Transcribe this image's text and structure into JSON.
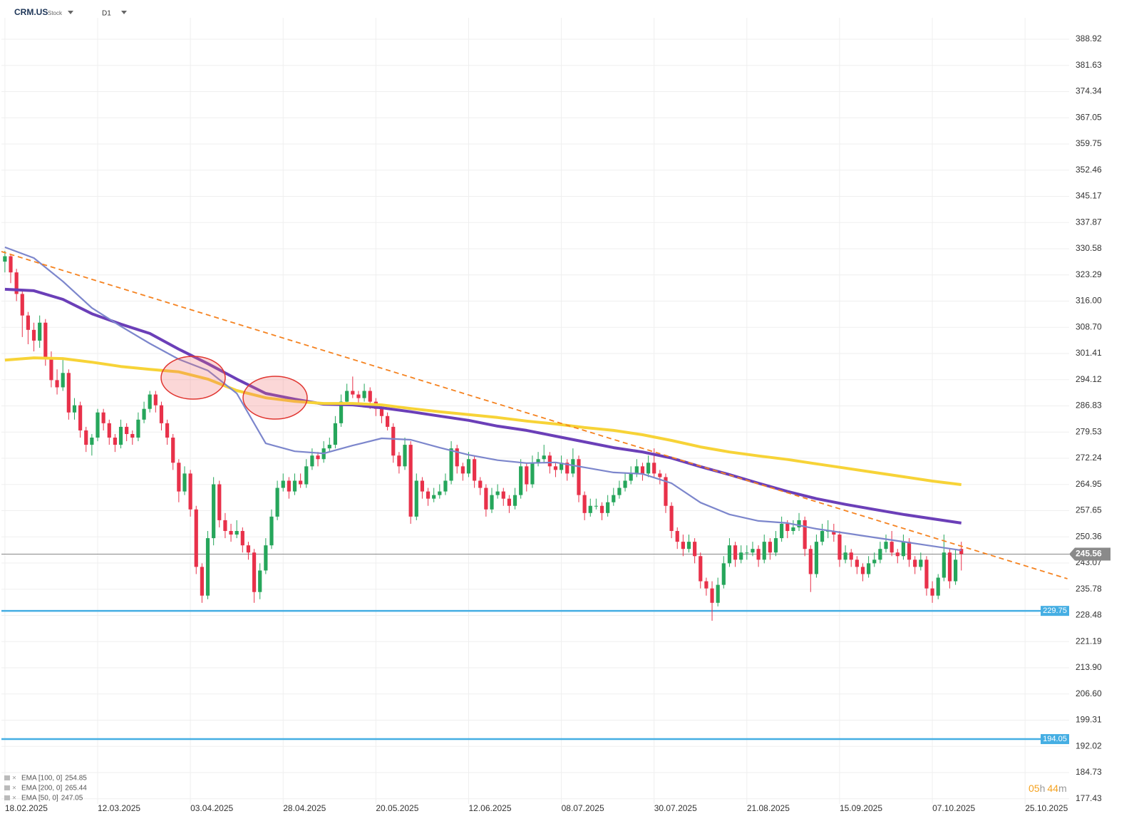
{
  "header": {
    "symbol": "CRM.US",
    "asset_class": "Stock",
    "timeframe": "D1"
  },
  "countdown": [
    "05",
    "h",
    "44",
    "m"
  ],
  "chart_data": {
    "type": "candlestick",
    "up_color": "#26a65b",
    "down_color": "#e8314a",
    "xlim": [
      -0.6,
      183.6
    ],
    "xticks": [
      {
        "value": 0,
        "label": "18.02.2025"
      },
      {
        "value": 16,
        "label": "12.03.2025"
      },
      {
        "value": 32,
        "label": "03.04.2025"
      },
      {
        "value": 48,
        "label": "28.04.2025"
      },
      {
        "value": 64,
        "label": "20.05.2025"
      },
      {
        "value": 80,
        "label": "12.06.2025"
      },
      {
        "value": 96,
        "label": "08.07.2025"
      },
      {
        "value": 112,
        "label": "30.07.2025"
      },
      {
        "value": 128,
        "label": "21.08.2025"
      },
      {
        "value": 144,
        "label": "15.09.2025"
      },
      {
        "value": 160,
        "label": "07.10.2025"
      },
      {
        "value": 176,
        "label": "25.10.2025"
      }
    ],
    "ylim": [
      176.0,
      392.9
    ],
    "yticks": [
      388.92,
      381.63,
      374.34,
      367.05,
      359.75,
      352.46,
      345.17,
      337.87,
      330.58,
      323.29,
      {
        "value": 316,
        "label": "316.00"
      },
      {
        "value": 308.7,
        "label": "308.70"
      },
      301.41,
      294.12,
      286.83,
      279.53,
      272.24,
      264.95,
      257.65,
      250.36,
      243.07,
      235.78,
      228.48,
      221.19,
      {
        "value": 213.9,
        "label": "213.90"
      },
      {
        "value": 206.6,
        "label": "206.60"
      },
      199.31,
      192.02,
      184.73,
      177.43
    ],
    "grid": true,
    "candles": [
      [
        327,
        330,
        324,
        328.5
      ],
      [
        328.5,
        329,
        321,
        324
      ],
      [
        324,
        325,
        316,
        318
      ],
      [
        318,
        319,
        306,
        312
      ],
      [
        312,
        313,
        304,
        308
      ],
      [
        308,
        310,
        302,
        305
      ],
      [
        305,
        312,
        303,
        310
      ],
      [
        310,
        311,
        298,
        300
      ],
      [
        300,
        302,
        292,
        294
      ],
      [
        294,
        297,
        290,
        292
      ],
      [
        292,
        300,
        291,
        296
      ],
      [
        296,
        297,
        283,
        285
      ],
      [
        285,
        289,
        283,
        287
      ],
      [
        287,
        288,
        278,
        280
      ],
      [
        280,
        281,
        274,
        276
      ],
      [
        276,
        279,
        273,
        278
      ],
      [
        278,
        286,
        277,
        285
      ],
      [
        285,
        286,
        280,
        282
      ],
      [
        282,
        283,
        276,
        278
      ],
      [
        278,
        279,
        274,
        276
      ],
      [
        276,
        283,
        275,
        281
      ],
      [
        281,
        282,
        277,
        279
      ],
      [
        279,
        280,
        276,
        278
      ],
      [
        278,
        285,
        277,
        283
      ],
      [
        283,
        288,
        282,
        286
      ],
      [
        286,
        291,
        285,
        290
      ],
      [
        290,
        291,
        285,
        287
      ],
      [
        287,
        288,
        280,
        282
      ],
      [
        282,
        283,
        276,
        278
      ],
      [
        278,
        279,
        269,
        271
      ],
      [
        271,
        272,
        260,
        263
      ],
      [
        263,
        270,
        262,
        268
      ],
      [
        268,
        269,
        256,
        258
      ],
      [
        258,
        259,
        240,
        242
      ],
      [
        242,
        243,
        232,
        234
      ],
      [
        234,
        252,
        233,
        250
      ],
      [
        250,
        267,
        248,
        265
      ],
      [
        265,
        266,
        253,
        255
      ],
      [
        255,
        257,
        250,
        252
      ],
      [
        252,
        254,
        249,
        251
      ],
      [
        251,
        255,
        250,
        252
      ],
      [
        252,
        253,
        246,
        248
      ],
      [
        248,
        249,
        244,
        246
      ],
      [
        246,
        247,
        232,
        235
      ],
      [
        235,
        243,
        233,
        241
      ],
      [
        241,
        250,
        240,
        248
      ],
      [
        248,
        258,
        247,
        256
      ],
      [
        256,
        266,
        255,
        264
      ],
      [
        264,
        268,
        263,
        266
      ],
      [
        266,
        267,
        261,
        263
      ],
      [
        263,
        268,
        262,
        266
      ],
      [
        266,
        268,
        264,
        265
      ],
      [
        265,
        272,
        264,
        270
      ],
      [
        270,
        275,
        269,
        273
      ],
      [
        273,
        274,
        270,
        272
      ],
      [
        272,
        277,
        271,
        275
      ],
      [
        275,
        278,
        274,
        276
      ],
      [
        276,
        284,
        275,
        282
      ],
      [
        282,
        290,
        281,
        288
      ],
      [
        288,
        293,
        287,
        291
      ],
      [
        291,
        295,
        289,
        290
      ],
      [
        290,
        291,
        287,
        289
      ],
      [
        289,
        293,
        288,
        291
      ],
      [
        291,
        292,
        286,
        288
      ],
      [
        288,
        289,
        284,
        286
      ],
      [
        286,
        287,
        282,
        284
      ],
      [
        284,
        285,
        280,
        281
      ],
      [
        281,
        282,
        271,
        273
      ],
      [
        273,
        274,
        268,
        270
      ],
      [
        270,
        278,
        269,
        276
      ],
      [
        276,
        277,
        254,
        256
      ],
      [
        256,
        268,
        255,
        266
      ],
      [
        266,
        267,
        261,
        263
      ],
      [
        263,
        264,
        259,
        261
      ],
      [
        261,
        264,
        260,
        262
      ],
      [
        262,
        265,
        261,
        263
      ],
      [
        263,
        268,
        262,
        266
      ],
      [
        266,
        277,
        265,
        275
      ],
      [
        275,
        276,
        268,
        270
      ],
      [
        270,
        271,
        266,
        268
      ],
      [
        268,
        274,
        267,
        272
      ],
      [
        272,
        273,
        264,
        266
      ],
      [
        266,
        267,
        262,
        264
      ],
      [
        264,
        265,
        256,
        258
      ],
      [
        258,
        264,
        257,
        262
      ],
      [
        262,
        265,
        261,
        263
      ],
      [
        263,
        264,
        259,
        261
      ],
      [
        261,
        262,
        257,
        259
      ],
      [
        259,
        264,
        258,
        262
      ],
      [
        262,
        272,
        261,
        270
      ],
      [
        270,
        271,
        263,
        265
      ],
      [
        265,
        273,
        264,
        271
      ],
      [
        271,
        274,
        270,
        272
      ],
      [
        272,
        276,
        271,
        273
      ],
      [
        273,
        274,
        268,
        270
      ],
      [
        270,
        271,
        267,
        269
      ],
      [
        269,
        273,
        268,
        271
      ],
      [
        271,
        272,
        266,
        268
      ],
      [
        268,
        275,
        267,
        272
      ],
      [
        272,
        273,
        260,
        262
      ],
      [
        262,
        263,
        255,
        257
      ],
      [
        257,
        261,
        256,
        259
      ],
      [
        259,
        261,
        258,
        259
      ],
      [
        259,
        260,
        255,
        257
      ],
      [
        257,
        262,
        256,
        260
      ],
      [
        260,
        264,
        259,
        262
      ],
      [
        262,
        266,
        261,
        264
      ],
      [
        264,
        268,
        263,
        266
      ],
      [
        266,
        270,
        265,
        268
      ],
      [
        268,
        272,
        267,
        270
      ],
      [
        270,
        271,
        266,
        268
      ],
      [
        268,
        273,
        267,
        271
      ],
      [
        271,
        275,
        267,
        268
      ],
      [
        268,
        269,
        265,
        267
      ],
      [
        267,
        268,
        257,
        259
      ],
      [
        259,
        260,
        250,
        252
      ],
      [
        252,
        253,
        247,
        249
      ],
      [
        249,
        251,
        245,
        247
      ],
      [
        247,
        251,
        246,
        249
      ],
      [
        249,
        250,
        243,
        245
      ],
      [
        245,
        246,
        236,
        238
      ],
      [
        238,
        239,
        234,
        236
      ],
      [
        236,
        238,
        227,
        232
      ],
      [
        232,
        239,
        231,
        237
      ],
      [
        237,
        245,
        236,
        243
      ],
      [
        243,
        250,
        242,
        248
      ],
      [
        248,
        249,
        242,
        244
      ],
      [
        244,
        248,
        243,
        246
      ],
      [
        246,
        248,
        244,
        246
      ],
      [
        246,
        249,
        245,
        247
      ],
      [
        247,
        248,
        242,
        244
      ],
      [
        244,
        251,
        243,
        249
      ],
      [
        249,
        250,
        244,
        246
      ],
      [
        246,
        252,
        245,
        250
      ],
      [
        250,
        256,
        249,
        254
      ],
      [
        254,
        255,
        250,
        252
      ],
      [
        252,
        255,
        251,
        253
      ],
      [
        253,
        257,
        252,
        255
      ],
      [
        255,
        256,
        245,
        247
      ],
      [
        247,
        248,
        235,
        240
      ],
      [
        240,
        251,
        239,
        249
      ],
      [
        249,
        254,
        248,
        252
      ],
      [
        252,
        255,
        250,
        252
      ],
      [
        252,
        254,
        249,
        251
      ],
      [
        251,
        252,
        242,
        244
      ],
      [
        244,
        248,
        243,
        246
      ],
      [
        246,
        247,
        242,
        244
      ],
      [
        244,
        245,
        240,
        242
      ],
      [
        242,
        243,
        238,
        240
      ],
      [
        240,
        245,
        239,
        243
      ],
      [
        243,
        246,
        242,
        244
      ],
      [
        244,
        249,
        243,
        247
      ],
      [
        247,
        251,
        246,
        249
      ],
      [
        249,
        252,
        245,
        246
      ],
      [
        246,
        247,
        243,
        245
      ],
      [
        245,
        251,
        244,
        249
      ],
      [
        249,
        250,
        242,
        244
      ],
      [
        244,
        245,
        240,
        242
      ],
      [
        242,
        246,
        241,
        244
      ],
      [
        244,
        245,
        234,
        236
      ],
      [
        236,
        238,
        232,
        234
      ],
      [
        234,
        240,
        233,
        239
      ],
      [
        239,
        251,
        238,
        246
      ],
      [
        246,
        247,
        236,
        238
      ],
      [
        238,
        247,
        237,
        244
      ],
      [
        247,
        249,
        241,
        245.56
      ]
    ],
    "x": [
      0,
      5,
      10,
      15,
      20,
      25,
      30,
      35,
      40,
      45,
      50,
      55,
      60,
      65,
      70,
      75,
      80,
      85,
      90,
      95,
      100,
      105,
      110,
      115,
      120,
      125,
      130,
      135,
      140,
      145,
      150,
      155,
      160,
      165
    ],
    "series": [
      {
        "name": "EMA [100, 0]",
        "last": 254.85,
        "color": "#6b3fb8",
        "weight": "thick",
        "values": [
          319.3,
          318.9,
          316.5,
          312.5,
          309.6,
          307.0,
          302.6,
          298.6,
          294.3,
          290.3,
          288.7,
          287.3,
          287.1,
          286.3,
          285.2,
          284.0,
          282.8,
          281.2,
          280.0,
          278.4,
          276.8,
          275.2,
          274.0,
          272.3,
          269.9,
          267.7,
          265.3,
          263.0,
          261.0,
          259.4,
          258.0,
          256.6,
          255.4,
          254.2
        ]
      },
      {
        "name": "EMA [200, 0]",
        "last": 265.44,
        "color": "#f7d337",
        "weight": "thick",
        "values": [
          299.6,
          300.2,
          300.0,
          299.0,
          297.8,
          297.0,
          296.3,
          294.3,
          291.1,
          289.1,
          288.1,
          287.5,
          287.5,
          287.1,
          286.1,
          285.2,
          284.4,
          283.6,
          282.6,
          281.8,
          280.8,
          280.0,
          278.8,
          277.2,
          275.4,
          274.0,
          272.9,
          271.9,
          270.7,
          269.5,
          268.3,
          267.1,
          265.9,
          264.9
        ]
      },
      {
        "name": "EMA [50, 0]",
        "last": 247.05,
        "color": "#7c86cc",
        "weight": "thin",
        "values": [
          331.0,
          328.0,
          321.5,
          314.1,
          309.0,
          304.2,
          299.8,
          296.7,
          290.3,
          276.4,
          274.2,
          273.6,
          275.8,
          277.8,
          277.4,
          275.2,
          273.2,
          271.7,
          270.9,
          271.1,
          269.7,
          268.3,
          267.9,
          265.3,
          259.9,
          256.6,
          254.8,
          254.2,
          252.6,
          251.4,
          250.2,
          249.0,
          247.8,
          246.6
        ]
      }
    ],
    "trendline": {
      "x": [
        -0.6,
        183.3
      ],
      "values": [
        329.8,
        238.7
      ],
      "color": "#f5821f",
      "style": "dashed"
    },
    "levels": [
      {
        "value": 229.75,
        "color": "#45aee3"
      },
      {
        "value": 194.05,
        "color": "#45aee3"
      }
    ],
    "last_price": 245.56
  }
}
